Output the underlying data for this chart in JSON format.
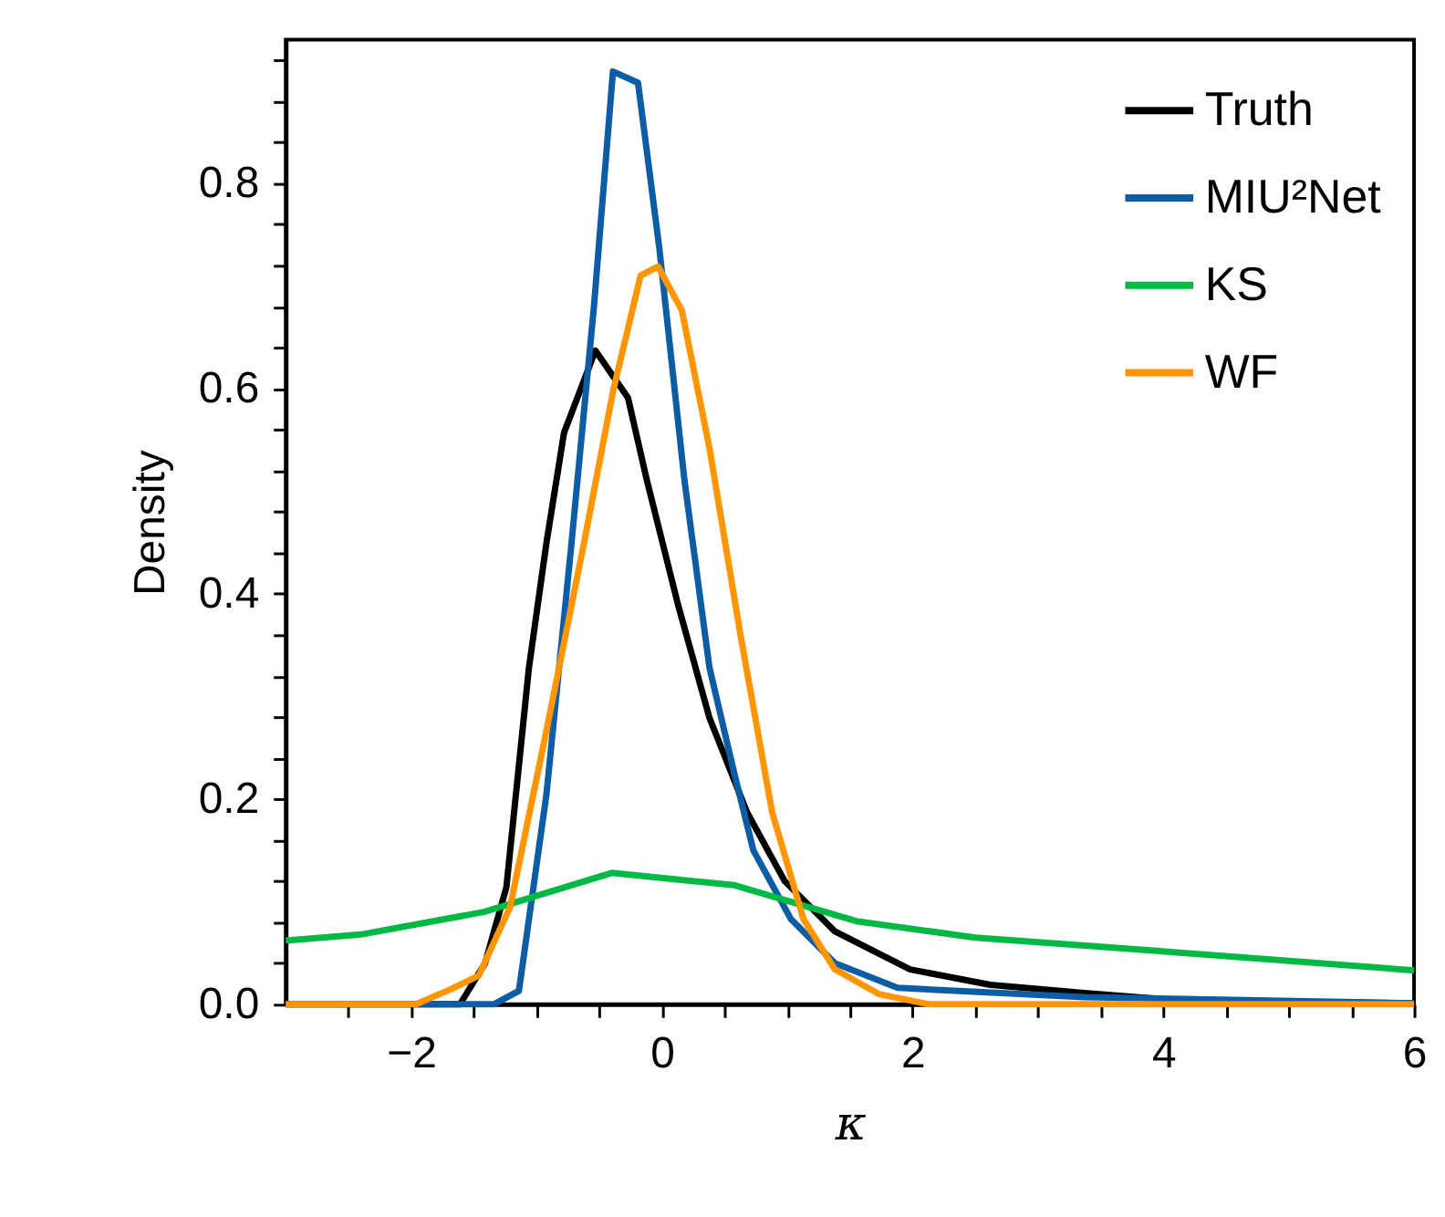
{
  "chart_data": {
    "type": "line",
    "xlabel": "κ",
    "ylabel": "Density",
    "xlim": [
      -3,
      6
    ],
    "ylim": [
      0,
      0.94
    ],
    "xticks": [
      {
        "value": -2.5,
        "label": null
      },
      {
        "value": -2,
        "label": "−2"
      },
      {
        "value": -1.5,
        "label": null
      },
      {
        "value": -1,
        "label": null
      },
      {
        "value": -0.5,
        "label": null
      },
      {
        "value": 0,
        "label": "0"
      },
      {
        "value": 0.5,
        "label": null
      },
      {
        "value": 1,
        "label": null
      },
      {
        "value": 1.5,
        "label": null
      },
      {
        "value": 2,
        "label": "2"
      },
      {
        "value": 2.5,
        "label": null
      },
      {
        "value": 3,
        "label": null
      },
      {
        "value": 3.5,
        "label": null
      },
      {
        "value": 4,
        "label": "4"
      },
      {
        "value": 4.5,
        "label": null
      },
      {
        "value": 5,
        "label": null
      },
      {
        "value": 5.5,
        "label": null
      },
      {
        "value": 6,
        "label": "6"
      }
    ],
    "yticks": [
      {
        "value": 0,
        "label": "0.0"
      },
      {
        "value": 0.04,
        "label": null
      },
      {
        "value": 0.08,
        "label": null
      },
      {
        "value": 0.12,
        "label": null
      },
      {
        "value": 0.16,
        "label": null
      },
      {
        "value": 0.2,
        "label": "0.2"
      },
      {
        "value": 0.24,
        "label": null
      },
      {
        "value": 0.28,
        "label": null
      },
      {
        "value": 0.32,
        "label": null
      },
      {
        "value": 0.36,
        "label": null
      },
      {
        "value": 0.4,
        "label": "0.4"
      },
      {
        "value": 0.44,
        "label": null
      },
      {
        "value": 0.48,
        "label": null
      },
      {
        "value": 0.52,
        "label": null
      },
      {
        "value": 0.56,
        "label": null
      },
      {
        "value": 0.6,
        "label": "0.6"
      },
      {
        "value": 0.64,
        "label": null
      },
      {
        "value": 0.68,
        "label": null
      },
      {
        "value": 0.72,
        "label": null
      },
      {
        "value": 0.76,
        "label": null
      },
      {
        "value": 0.8,
        "label": "0.8"
      },
      {
        "value": 0.84,
        "label": null
      },
      {
        "value": 0.88,
        "label": null
      },
      {
        "value": 0.92,
        "label": null
      }
    ],
    "grid": false,
    "legend": "top right",
    "marker": "none",
    "line_style": "solid",
    "series": [
      {
        "name": "Truth",
        "color": "#000000",
        "x": [
          -3,
          -1.61,
          -1.41,
          -1.24,
          -1.06,
          -0.92,
          -0.78,
          -0.53,
          -0.27,
          -0.12,
          0.13,
          0.38,
          0.68,
          0.98,
          1.38,
          1.98,
          2.62,
          3.37,
          4,
          5,
          6
        ],
        "values": [
          0,
          0,
          0.04,
          0.114,
          0.328,
          0.45,
          0.557,
          0.637,
          0.591,
          0.511,
          0.389,
          0.279,
          0.187,
          0.12,
          0.071,
          0.034,
          0.019,
          0.011,
          0.005,
          0.002,
          0.001
        ]
      },
      {
        "name": "MIU²Net",
        "color": "#0c5da5",
        "x": [
          -3,
          -1.34,
          -1.14,
          -0.92,
          -0.72,
          -0.54,
          -0.39,
          -0.19,
          -0.02,
          0.18,
          0.38,
          0.58,
          0.73,
          1.03,
          1.38,
          1.88,
          3.37,
          6
        ],
        "values": [
          0,
          0,
          0.013,
          0.205,
          0.45,
          0.682,
          0.909,
          0.898,
          0.737,
          0.511,
          0.328,
          0.224,
          0.15,
          0.083,
          0.04,
          0.016,
          0.007,
          0.001
        ]
      },
      {
        "name": "KS",
        "color": "#00b945",
        "x": [
          -3,
          -2.4,
          -1.42,
          -0.4,
          0.58,
          1.55,
          2.5,
          3.85,
          6
        ],
        "values": [
          0.062,
          0.068,
          0.09,
          0.128,
          0.116,
          0.081,
          0.065,
          0.053,
          0.033
        ]
      },
      {
        "name": "WF",
        "color": "#ff9500",
        "x": [
          -3,
          -1.96,
          -1.66,
          -1.46,
          -1.21,
          -0.92,
          -0.62,
          -0.39,
          -0.17,
          -0.03,
          0.16,
          0.38,
          0.63,
          0.88,
          1.13,
          1.38,
          1.73,
          2.13,
          6
        ],
        "values": [
          0,
          0,
          0.016,
          0.028,
          0.095,
          0.267,
          0.45,
          0.597,
          0.71,
          0.719,
          0.676,
          0.542,
          0.358,
          0.187,
          0.083,
          0.034,
          0.01,
          0,
          0
        ]
      }
    ]
  }
}
